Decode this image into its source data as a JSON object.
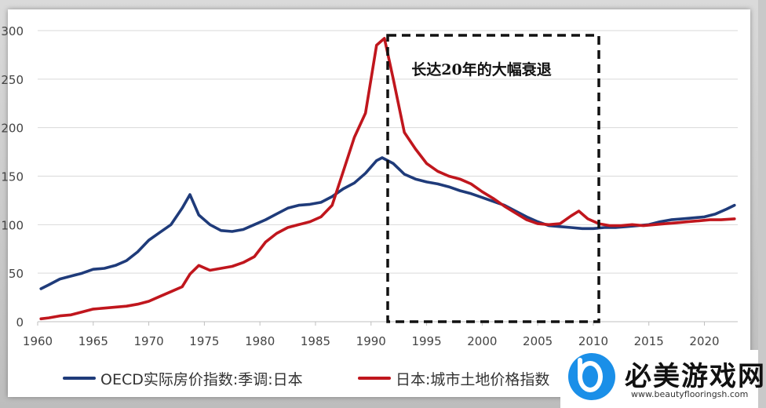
{
  "chart_data": {
    "type": "line",
    "xlim": [
      1960,
      2023
    ],
    "ylim": [
      0,
      300
    ],
    "xticks": [
      1960,
      1965,
      1970,
      1975,
      1980,
      1985,
      1990,
      1995,
      2000,
      2005,
      2010,
      2015,
      2020
    ],
    "yticks": [
      0,
      50,
      100,
      150,
      200,
      250,
      300
    ],
    "grid": "horizontal",
    "legend_position": "bottom",
    "annotation": {
      "text": "长达20年的大幅衰退",
      "x_range": [
        1991.5,
        2010.5
      ],
      "style": "dashed box"
    },
    "series": [
      {
        "name": "OECD实际房价指数:季调:日本",
        "color": "#1f3b7a",
        "points": [
          [
            1960.3,
            34
          ],
          [
            1961,
            38
          ],
          [
            1962,
            44
          ],
          [
            1963,
            47
          ],
          [
            1964,
            50
          ],
          [
            1965,
            54
          ],
          [
            1966,
            55
          ],
          [
            1967,
            58
          ],
          [
            1968,
            63
          ],
          [
            1969,
            72
          ],
          [
            1970,
            84
          ],
          [
            1971,
            92
          ],
          [
            1972,
            100
          ],
          [
            1973,
            117
          ],
          [
            1973.7,
            131
          ],
          [
            1974.5,
            110
          ],
          [
            1975.5,
            100
          ],
          [
            1976.5,
            94
          ],
          [
            1977.5,
            93
          ],
          [
            1978.5,
            95
          ],
          [
            1979.5,
            100
          ],
          [
            1980.5,
            105
          ],
          [
            1981.5,
            111
          ],
          [
            1982.5,
            117
          ],
          [
            1983.5,
            120
          ],
          [
            1984.5,
            121
          ],
          [
            1985.5,
            123
          ],
          [
            1986.5,
            129
          ],
          [
            1987.5,
            137
          ],
          [
            1988.5,
            143
          ],
          [
            1989.5,
            153
          ],
          [
            1990.5,
            166
          ],
          [
            1991,
            169
          ],
          [
            1992,
            163
          ],
          [
            1993,
            152
          ],
          [
            1994,
            147
          ],
          [
            1995,
            144
          ],
          [
            1996,
            142
          ],
          [
            1997,
            139
          ],
          [
            1998,
            135
          ],
          [
            1999,
            132
          ],
          [
            2000,
            128
          ],
          [
            2001,
            124
          ],
          [
            2002,
            120
          ],
          [
            2003,
            114
          ],
          [
            2004,
            108
          ],
          [
            2005,
            103
          ],
          [
            2006,
            99
          ],
          [
            2007,
            98
          ],
          [
            2008,
            97
          ],
          [
            2009,
            96
          ],
          [
            2010,
            96
          ],
          [
            2011,
            97
          ],
          [
            2012,
            97
          ],
          [
            2013,
            98
          ],
          [
            2014,
            99
          ],
          [
            2015,
            100
          ],
          [
            2016,
            103
          ],
          [
            2017,
            105
          ],
          [
            2018,
            106
          ],
          [
            2019,
            107
          ],
          [
            2020,
            108
          ],
          [
            2021,
            111
          ],
          [
            2022,
            116
          ],
          [
            2022.7,
            120
          ]
        ]
      },
      {
        "name": "日本:城市土地价格指数",
        "color": "#c0161d",
        "points": [
          [
            1960.3,
            3
          ],
          [
            1961,
            4
          ],
          [
            1962,
            6
          ],
          [
            1963,
            7
          ],
          [
            1964,
            10
          ],
          [
            1965,
            13
          ],
          [
            1966,
            14
          ],
          [
            1967,
            15
          ],
          [
            1968,
            16
          ],
          [
            1969,
            18
          ],
          [
            1970,
            21
          ],
          [
            1971,
            26
          ],
          [
            1972,
            31
          ],
          [
            1973,
            36
          ],
          [
            1973.7,
            49
          ],
          [
            1974.5,
            58
          ],
          [
            1975.5,
            53
          ],
          [
            1976.5,
            55
          ],
          [
            1977.5,
            57
          ],
          [
            1978.5,
            61
          ],
          [
            1979.5,
            67
          ],
          [
            1980.5,
            82
          ],
          [
            1981.5,
            91
          ],
          [
            1982.5,
            97
          ],
          [
            1983.5,
            100
          ],
          [
            1984.5,
            103
          ],
          [
            1985.5,
            108
          ],
          [
            1986.5,
            120
          ],
          [
            1987.5,
            155
          ],
          [
            1988.5,
            190
          ],
          [
            1989.5,
            215
          ],
          [
            1990.5,
            285
          ],
          [
            1991.2,
            292
          ],
          [
            1992,
            250
          ],
          [
            1993,
            195
          ],
          [
            1994,
            178
          ],
          [
            1995,
            163
          ],
          [
            1996,
            155
          ],
          [
            1997,
            150
          ],
          [
            1998,
            147
          ],
          [
            1999,
            142
          ],
          [
            2000,
            134
          ],
          [
            2001,
            127
          ],
          [
            2002,
            119
          ],
          [
            2003,
            112
          ],
          [
            2004,
            105
          ],
          [
            2005,
            101
          ],
          [
            2006,
            100
          ],
          [
            2007,
            101
          ],
          [
            2008,
            109
          ],
          [
            2008.7,
            114
          ],
          [
            2009.5,
            106
          ],
          [
            2010.5,
            101
          ],
          [
            2011.5,
            99
          ],
          [
            2012.5,
            99
          ],
          [
            2013.5,
            100
          ],
          [
            2014.5,
            99
          ],
          [
            2015.5,
            100
          ],
          [
            2016.5,
            101
          ],
          [
            2017.5,
            102
          ],
          [
            2018.5,
            103
          ],
          [
            2019.5,
            104
          ],
          [
            2020.5,
            105
          ],
          [
            2021.5,
            105
          ],
          [
            2022.7,
            106
          ]
        ]
      }
    ]
  },
  "watermark": {
    "brand": "必美游戏网",
    "url": "www.beautyflooringsh.com"
  }
}
